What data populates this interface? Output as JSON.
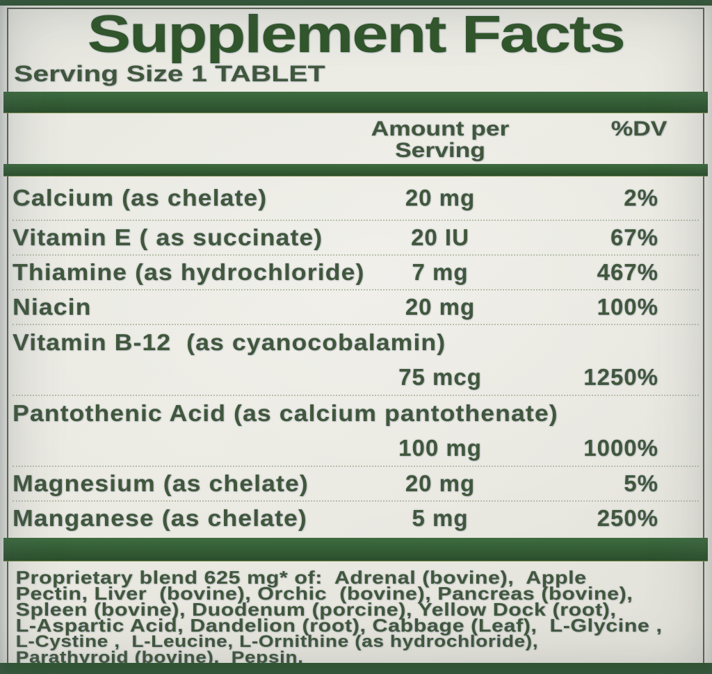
{
  "label": {
    "title": "Supplement Facts",
    "serving_size": "Serving Size 1 TABLET",
    "columns": {
      "amount_line1": "Amount per",
      "amount_line2": "Serving",
      "dv": "%DV"
    },
    "rows": [
      {
        "name": "Calcium (as chelate)",
        "amount": "20 mg",
        "dv": "2%"
      },
      {
        "name": "Vitamin E ( as succinate)",
        "amount": "20 IU",
        "dv": "67%"
      },
      {
        "name": "Thiamine (as hydrochloride)",
        "amount": "7 mg",
        "dv": "467%"
      },
      {
        "name": "Niacin",
        "amount": "20 mg",
        "dv": "100%"
      },
      {
        "name": "Vitamin B-12  (as cyanocobalamin)",
        "amount": "75 mcg",
        "dv": "1250%"
      },
      {
        "name": "Pantothenic Acid (as calcium pantothenate)",
        "amount": "100 mg",
        "dv": "1000%"
      },
      {
        "name": "Magnesium (as chelate)",
        "amount": "20 mg",
        "dv": "5%"
      },
      {
        "name": "Manganese (as chelate)",
        "amount": "5 mg",
        "dv": "250%"
      }
    ],
    "proprietary_blend": {
      "lines": [
        "Proprietary blend 625 mg* of:  Adrenal (bovine),  Apple",
        "Pectin, Liver  (bovine), Orchic  (bovine), Pancreas (bovine),",
        "Spleen (bovine), Duodenum (porcine), Yellow Dock (root),",
        "L-Aspartic Acid, Dandelion (root), Cabbage (Leaf),  L-Glycine ,",
        "L-Cystine ,  L-Leucine, L-Ornithine (as hydrochloride),",
        "Parathyroid (bovine),  Pepsin."
      ]
    },
    "colors": {
      "bar_green": "#2e5630",
      "title_green": "#31562b",
      "text_green": "#41573d",
      "background": "#e9e8e0"
    }
  }
}
